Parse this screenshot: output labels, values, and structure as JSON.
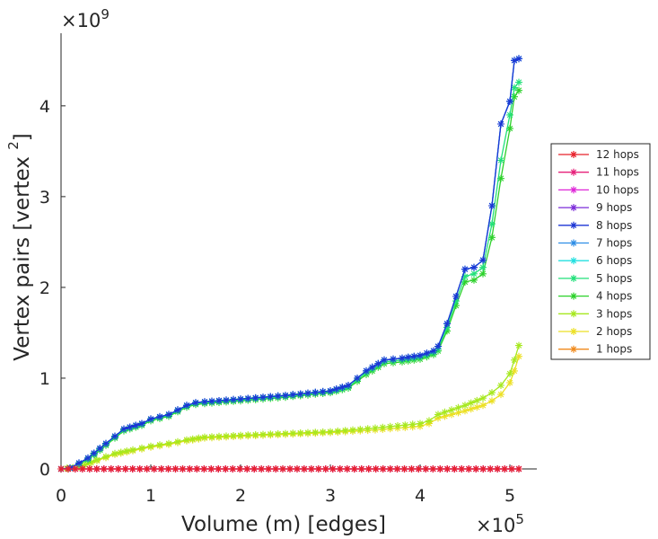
{
  "chart_data": {
    "type": "line",
    "xlabel": "Volume (m) [edges]",
    "ylabel": "Vertex pairs [vertex ",
    "ylabel_sup": "2",
    "ylabel_close": "]",
    "x_multiplier": {
      "base": "×10",
      "exp": "5"
    },
    "y_multiplier": {
      "base": "×10",
      "exp": "9"
    },
    "xlim": [
      0,
      5.3
    ],
    "ylim": [
      0,
      4.8
    ],
    "x_units_note": "x values in units of 1e5 edges",
    "y_units_note": "y values in units of 1e9 vertex^2",
    "xticks": [
      0,
      1,
      2,
      3,
      4,
      5
    ],
    "yticks": [
      0,
      1,
      2,
      3,
      4
    ],
    "legend_position": "right-outside",
    "series": [
      {
        "name": "12 hops",
        "color": "#e8212b",
        "curve": "zero"
      },
      {
        "name": "11 hops",
        "color": "#e6207a",
        "curve": "zero"
      },
      {
        "name": "10 hops",
        "color": "#df27d8",
        "curve": "zero"
      },
      {
        "name": "9 hops",
        "color": "#7b2bd9",
        "curve": "zero"
      },
      {
        "name": "8 hops",
        "color": "#1b35d4",
        "curve": "upper"
      },
      {
        "name": "7 hops",
        "color": "#2e8ee6",
        "curve": "upper"
      },
      {
        "name": "6 hops",
        "color": "#22e0e0",
        "curve": "upper"
      },
      {
        "name": "5 hops",
        "color": "#22e07a",
        "curve": "upper_s5"
      },
      {
        "name": "4 hops",
        "color": "#2cd12a",
        "curve": "upper_s4"
      },
      {
        "name": "3 hops",
        "color": "#a6e81f",
        "curve": "lower"
      },
      {
        "name": "2 hops",
        "color": "#ece024",
        "curve": "lower_s2"
      },
      {
        "name": "1 hops",
        "color": "#f08a1c",
        "curve": "zero"
      }
    ],
    "curves": {
      "upper": {
        "x": [
          0,
          0.1,
          0.3,
          0.5,
          0.7,
          0.9,
          1.0,
          1.2,
          1.4,
          1.5,
          1.6,
          2.0,
          2.5,
          3.0,
          3.2,
          3.4,
          3.6,
          3.8,
          4.0,
          4.15,
          4.2,
          4.3,
          4.4,
          4.5,
          4.6,
          4.7,
          4.8,
          4.9,
          5.0,
          5.05,
          5.1
        ],
        "y": [
          0,
          0.01,
          0.12,
          0.28,
          0.44,
          0.5,
          0.55,
          0.6,
          0.7,
          0.73,
          0.74,
          0.77,
          0.81,
          0.86,
          0.92,
          1.08,
          1.2,
          1.22,
          1.25,
          1.3,
          1.35,
          1.6,
          1.9,
          2.2,
          2.22,
          2.3,
          2.9,
          3.8,
          4.05,
          4.5,
          4.52
        ]
      },
      "upper_s5": {
        "x": [
          0,
          0.1,
          0.3,
          0.5,
          0.7,
          0.9,
          1.0,
          1.2,
          1.4,
          1.5,
          1.6,
          2.0,
          2.5,
          3.0,
          3.2,
          3.4,
          3.6,
          3.8,
          4.0,
          4.15,
          4.2,
          4.3,
          4.4,
          4.5,
          4.6,
          4.7,
          4.8,
          4.9,
          5.0,
          5.05,
          5.1
        ],
        "y": [
          0,
          0.01,
          0.11,
          0.27,
          0.43,
          0.49,
          0.54,
          0.59,
          0.69,
          0.72,
          0.73,
          0.76,
          0.8,
          0.85,
          0.9,
          1.06,
          1.18,
          1.2,
          1.23,
          1.28,
          1.32,
          1.56,
          1.85,
          2.12,
          2.15,
          2.22,
          2.7,
          3.4,
          3.9,
          4.2,
          4.26
        ]
      },
      "upper_s4": {
        "x": [
          0,
          0.1,
          0.3,
          0.5,
          0.7,
          0.9,
          1.0,
          1.2,
          1.4,
          1.5,
          1.6,
          2.0,
          2.5,
          3.0,
          3.2,
          3.4,
          3.6,
          3.8,
          4.0,
          4.15,
          4.2,
          4.3,
          4.4,
          4.5,
          4.6,
          4.7,
          4.8,
          4.9,
          5.0,
          5.05,
          5.1
        ],
        "y": [
          0,
          0.01,
          0.1,
          0.26,
          0.42,
          0.48,
          0.53,
          0.58,
          0.68,
          0.71,
          0.72,
          0.75,
          0.79,
          0.84,
          0.89,
          1.04,
          1.16,
          1.18,
          1.21,
          1.26,
          1.3,
          1.52,
          1.8,
          2.06,
          2.08,
          2.15,
          2.55,
          3.2,
          3.75,
          4.1,
          4.17
        ]
      },
      "lower": {
        "x": [
          0,
          0.2,
          0.4,
          0.6,
          0.8,
          1.0,
          1.2,
          1.4,
          1.6,
          2.0,
          2.5,
          3.0,
          3.5,
          4.0,
          4.1,
          4.2,
          4.5,
          4.7,
          4.8,
          4.9,
          5.0,
          5.05,
          5.1
        ],
        "y": [
          0,
          0.02,
          0.1,
          0.17,
          0.21,
          0.25,
          0.28,
          0.32,
          0.35,
          0.37,
          0.39,
          0.41,
          0.45,
          0.5,
          0.53,
          0.6,
          0.7,
          0.78,
          0.84,
          0.92,
          1.05,
          1.2,
          1.36
        ]
      },
      "lower_s2": {
        "x": [
          0,
          0.2,
          0.4,
          0.6,
          0.8,
          1.0,
          1.2,
          1.4,
          1.6,
          2.0,
          2.5,
          3.0,
          3.5,
          4.0,
          4.1,
          4.2,
          4.5,
          4.7,
          4.8,
          4.9,
          5.0,
          5.05,
          5.1
        ],
        "y": [
          0,
          0.02,
          0.09,
          0.16,
          0.2,
          0.24,
          0.27,
          0.31,
          0.34,
          0.36,
          0.38,
          0.4,
          0.43,
          0.47,
          0.5,
          0.56,
          0.64,
          0.7,
          0.75,
          0.82,
          0.95,
          1.08,
          1.24
        ]
      },
      "zero": {
        "x": [
          0,
          5.1
        ],
        "y": [
          0,
          0
        ]
      }
    }
  }
}
